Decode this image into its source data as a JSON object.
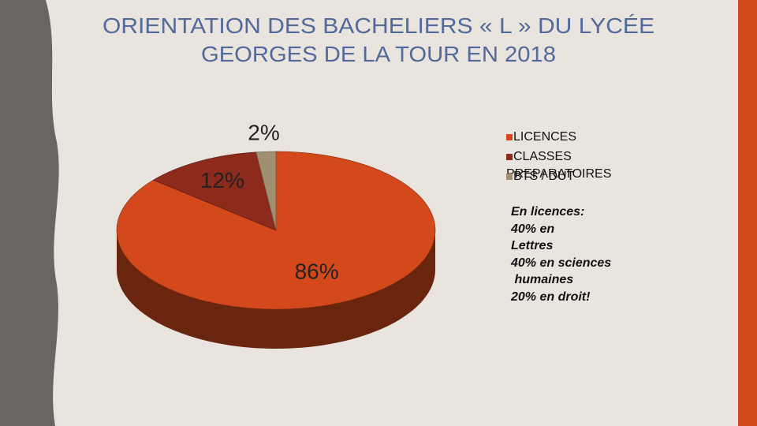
{
  "chart_data": {
    "type": "pie3d",
    "title": [
      "ORIENTATION  DES BACHELIERS « L » DU LYCÉE",
      "GEORGES DE LA TOUR EN 2018"
    ],
    "series": [
      {
        "name": "LICENCES",
        "color": "#d4491b",
        "values": [
          86
        ],
        "value_labels": [
          "86%"
        ]
      },
      {
        "name": "CLASSES PREPARATOIRES",
        "color": "#8c2a1c",
        "values": [
          12
        ],
        "value_labels": [
          "12%"
        ]
      },
      {
        "name": "BTS / DUT",
        "color": "#a08f70",
        "values": [
          2
        ],
        "value_labels": [
          "2%"
        ]
      }
    ],
    "annotation": [
      "En licences:",
      "40% en",
      "Lettres",
      "40% en sciences",
      " humaines",
      "20% en droit!"
    ]
  }
}
